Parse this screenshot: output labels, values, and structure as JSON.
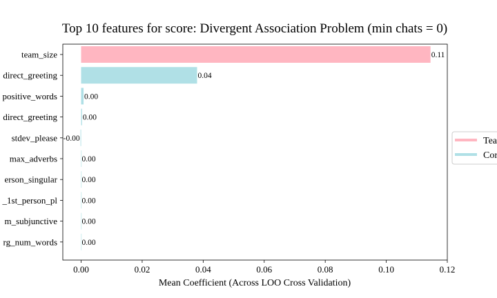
{
  "chart_data": {
    "type": "bar",
    "orientation": "horizontal",
    "title": "Top 10 features for score: Divergent Association Problem (min chats = 0)",
    "xlabel": "Mean Coefficient (Across LOO Cross Validation)",
    "ylabel": "",
    "xlim": [
      -0.006,
      0.12
    ],
    "xticks": [
      0.0,
      0.02,
      0.04,
      0.06,
      0.08,
      0.1,
      0.12
    ],
    "xtick_labels": [
      "0.00",
      "0.02",
      "0.04",
      "0.06",
      "0.08",
      "0.10",
      "0.12"
    ],
    "grid": false,
    "categories": [
      "team_size",
      "direct_greeting",
      "positive_words",
      "direct_greeting",
      "stdev_please",
      "max_adverbs",
      "erson_singular",
      "_1st_person_pl",
      "m_subjunctive",
      "rg_num_words"
    ],
    "values": [
      0.1145,
      0.038,
      0.0008,
      0.0003,
      -0.0002,
      0.0,
      0.0,
      0.0,
      0.0,
      0.0
    ],
    "value_labels": [
      "0.11",
      "0.04",
      "0.00",
      "0.00",
      "-0.00",
      "0.00",
      "0.00",
      "0.00",
      "0.00",
      "0.00"
    ],
    "bar_groups": [
      0,
      1,
      1,
      1,
      1,
      1,
      1,
      1,
      1,
      1
    ],
    "legend": {
      "placement": "center-right",
      "entries": [
        {
          "label": "Tea",
          "color": "#ffb6c1"
        },
        {
          "label": "Cor",
          "color": "#b0e0e6"
        }
      ]
    }
  }
}
